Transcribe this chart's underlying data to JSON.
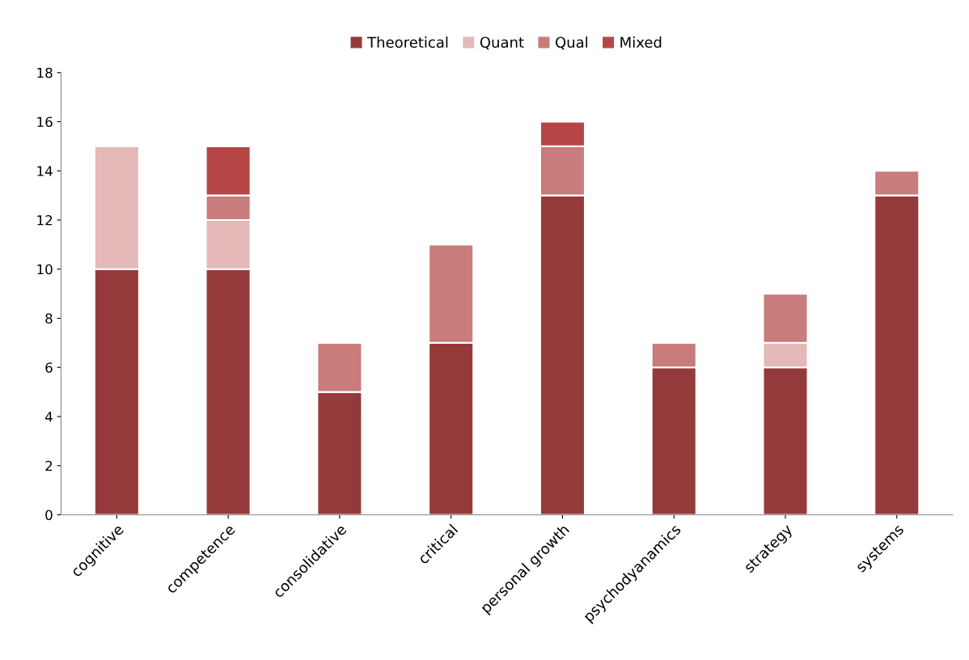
{
  "chart_data": {
    "type": "bar",
    "stacked": true,
    "categories": [
      "cognitive",
      "competence",
      "consolidative",
      "critical",
      "personal growth",
      "psychodyanamics",
      "strategy",
      "systems"
    ],
    "series": [
      {
        "name": "Theoretical",
        "color": "#953a3b",
        "values": [
          10,
          10,
          5,
          7,
          13,
          6,
          6,
          13
        ]
      },
      {
        "name": "Quant",
        "color": "#e5b9b8",
        "values": [
          5,
          2,
          0,
          0,
          0,
          0,
          1,
          0
        ]
      },
      {
        "name": "Qual",
        "color": "#c87c7b",
        "values": [
          0,
          1,
          2,
          4,
          2,
          1,
          2,
          1
        ]
      },
      {
        "name": "Mixed",
        "color": "#b64646",
        "values": [
          0,
          2,
          0,
          0,
          1,
          0,
          0,
          0
        ]
      }
    ],
    "ylim": [
      0,
      18
    ],
    "yticks": [
      0,
      2,
      4,
      6,
      8,
      10,
      12,
      14,
      16,
      18
    ],
    "grid": false,
    "legend": "top"
  }
}
